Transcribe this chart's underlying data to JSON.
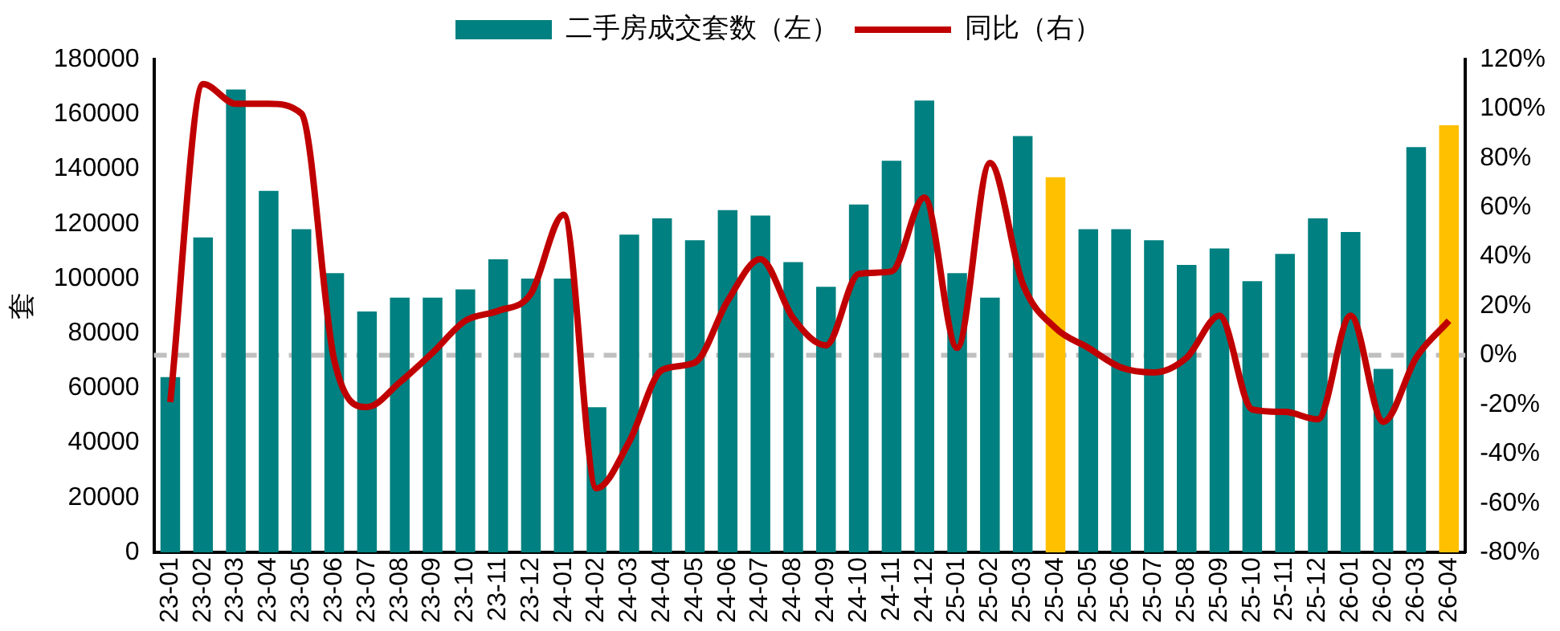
{
  "chart_data": {
    "type": "bar",
    "ylabel": "套",
    "legend": "top",
    "grid": false,
    "marker": "none",
    "categories": [
      "23-01",
      "23-02",
      "23-03",
      "23-04",
      "23-05",
      "23-06",
      "23-07",
      "23-08",
      "23-09",
      "23-10",
      "23-11",
      "23-12",
      "24-01",
      "24-02",
      "24-03",
      "24-04",
      "24-05",
      "24-06",
      "24-07",
      "24-08",
      "24-09",
      "24-10",
      "24-11",
      "24-12",
      "25-01",
      "25-02",
      "25-03",
      "25-04",
      "25-05",
      "25-06",
      "25-07",
      "25-08",
      "25-09",
      "25-10",
      "25-11",
      "25-12",
      "26-01",
      "26-02",
      "26-03",
      "26-04"
    ],
    "ylim": [
      0,
      180000
    ],
    "yticks": [
      0,
      20000,
      40000,
      60000,
      80000,
      100000,
      120000,
      140000,
      160000,
      180000
    ],
    "y2lim": [
      -80,
      120
    ],
    "y2ticks": [
      {
        "value": -80,
        "label": "-80%"
      },
      {
        "value": -60,
        "label": "-60%"
      },
      {
        "value": -40,
        "label": "-40%"
      },
      {
        "value": -20,
        "label": "-20%"
      },
      {
        "value": 0,
        "label": "0%"
      },
      {
        "value": 20,
        "label": "20%"
      },
      {
        "value": 40,
        "label": "40%"
      },
      {
        "value": 60,
        "label": "60%"
      },
      {
        "value": 80,
        "label": "80%"
      },
      {
        "value": 100,
        "label": "100%"
      },
      {
        "value": 120,
        "label": "120%"
      }
    ],
    "series": [
      {
        "name": "二手房成交套数（左）",
        "color": "#008080",
        "colors": [
          "#008080",
          "#008080",
          "#008080",
          "#008080",
          "#008080",
          "#008080",
          "#008080",
          "#008080",
          "#008080",
          "#008080",
          "#008080",
          "#008080",
          "#008080",
          "#008080",
          "#008080",
          "#008080",
          "#008080",
          "#008080",
          "#008080",
          "#008080",
          "#008080",
          "#008080",
          "#008080",
          "#008080",
          "#008080",
          "#008080",
          "#008080",
          "#ffc000",
          "#008080",
          "#008080",
          "#008080",
          "#008080",
          "#008080",
          "#008080",
          "#008080",
          "#008080",
          "#008080",
          "#008080",
          "#008080",
          "#ffc000"
        ],
        "values": [
          64000,
          115000,
          169000,
          132000,
          118000,
          102000,
          88000,
          93000,
          93000,
          96000,
          107000,
          100000,
          100000,
          53000,
          116000,
          122000,
          114000,
          125000,
          123000,
          106000,
          97000,
          127000,
          143000,
          165000,
          102000,
          93000,
          152000,
          137000,
          118000,
          118000,
          114000,
          105000,
          111000,
          99000,
          109000,
          122000,
          117000,
          67000,
          148000,
          156000
        ]
      },
      {
        "name": "同比（右）",
        "type": "line",
        "axis": "y2",
        "color": "#c00000",
        "line_style": "solid",
        "values": [
          -19,
          110,
          102,
          102,
          98,
          -2,
          -21,
          -11,
          1,
          14,
          18,
          25,
          57,
          -54,
          -35,
          -6,
          -3,
          22,
          39,
          15,
          4,
          33,
          34,
          64,
          3,
          78,
          29,
          11,
          3,
          -5,
          -7,
          -1,
          16,
          -22,
          -23,
          -26,
          16,
          -27,
          -1,
          14
        ]
      }
    ],
    "ref_lines": [
      {
        "axis": "y2",
        "value": 0,
        "color": "#bfbfbf",
        "line_style": "dashed"
      }
    ]
  }
}
